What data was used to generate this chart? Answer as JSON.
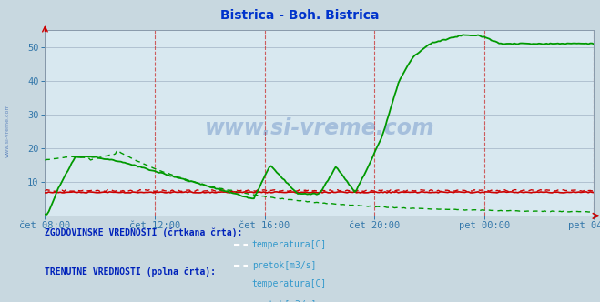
{
  "title": "Bistrica - Boh. Bistrica",
  "title_color": "#0033cc",
  "fig_bg_color": "#c8d8e0",
  "plot_bg_color": "#d8e8f0",
  "ylim": [
    0,
    55
  ],
  "yticks": [
    10,
    20,
    30,
    40,
    50
  ],
  "grid_color_h": "#aabbcc",
  "grid_color_v": "#cc4444",
  "xtick_labels": [
    "čet 08:00",
    "čet 12:00",
    "čet 16:00",
    "čet 20:00",
    "pet 00:00",
    "pet 04:00"
  ],
  "xtick_positions": [
    0.0,
    0.2,
    0.4,
    0.6,
    0.8,
    1.0
  ],
  "n_points": 290,
  "color_temp": "#cc0000",
  "color_pretok": "#009900",
  "legend_header1": "ZGODOVINSKE VREDNOSTI (črtkana črta):",
  "legend_header2": "TRENUTNE VREDNOSTI (polna črta):",
  "legend_temp": "temperatura[C]",
  "legend_pretok": "pretok[m3/s]",
  "watermark": "www.si-vreme.com",
  "tick_color": "#3377aa",
  "spine_color": "#8899aa"
}
